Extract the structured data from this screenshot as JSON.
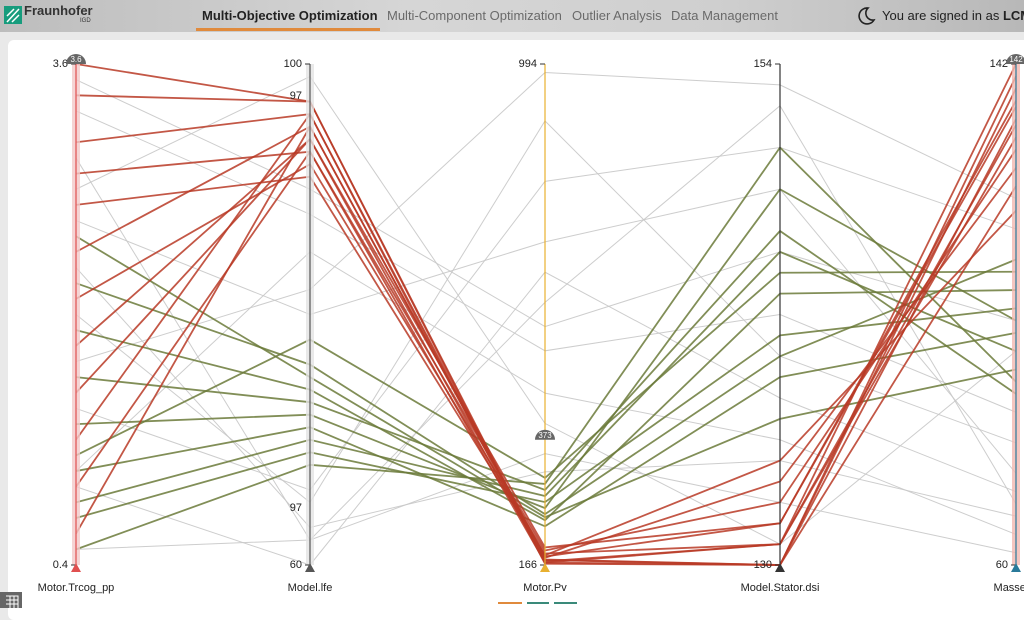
{
  "header": {
    "logo": "Fraunhofer",
    "logo_sub": "IGD",
    "tabs": [
      "Multi-Objective Optimization",
      "Multi-Component Optimization",
      "Outlier Analysis",
      "Data Management"
    ],
    "active_tab": 0,
    "user_prefix": "You are signed in as",
    "user": "LCM"
  },
  "chart_data": {
    "type": "parallel",
    "axes": [
      {
        "name": "Motor.Trcog_pp",
        "lim": [
          0.4,
          3.6
        ],
        "ticks": [
          0.4,
          3.6
        ],
        "badge": 3.6,
        "color": "#e05050"
      },
      {
        "name": "Model.lfe",
        "lim": [
          60,
          100
        ],
        "ticks": [
          60,
          100
        ],
        "brush_labels": [
          97,
          97
        ],
        "color": "#555555"
      },
      {
        "name": "Motor.Pv",
        "lim": [
          166,
          994
        ],
        "ticks": [
          166,
          994
        ],
        "badge": 373,
        "color": "#e8b030"
      },
      {
        "name": "Model.Stator.dsi",
        "lim": [
          130,
          154
        ],
        "ticks": [
          130,
          154
        ],
        "color": "#333333"
      },
      {
        "name": "Masses.c",
        "lim": [
          60,
          142
        ],
        "ticks": [
          60,
          142
        ],
        "badge": 142,
        "color": "#2a7a9a"
      }
    ],
    "groups": [
      {
        "color": "#c8c8c8",
        "records": [
          [
            3.0,
            62,
            600,
            152,
            70
          ],
          [
            2.0,
            65,
            900,
            140,
            80
          ],
          [
            1.0,
            85,
            450,
            136,
            65
          ],
          [
            2.6,
            80,
            700,
            148,
            75
          ],
          [
            0.5,
            62,
            350,
            133,
            62
          ],
          [
            3.3,
            88,
            520,
            142,
            85
          ],
          [
            1.4,
            66,
            800,
            150,
            115
          ],
          [
            2.8,
            99,
            400,
            131,
            95
          ],
          [
            0.9,
            60,
            650,
            138,
            72
          ],
          [
            1.7,
            82,
            980,
            153,
            120
          ],
          [
            2.3,
            63,
            320,
            135,
            68
          ],
          [
            3.5,
            90,
            560,
            145,
            100
          ]
        ]
      },
      {
        "color": "#6b7a3a",
        "records": [
          [
            1.3,
            72,
            260,
            148,
            100
          ],
          [
            0.8,
            70,
            280,
            145,
            95
          ],
          [
            1.9,
            74,
            240,
            143,
            105
          ],
          [
            0.5,
            68,
            300,
            150,
            90
          ],
          [
            2.2,
            76,
            250,
            140,
            110
          ],
          [
            1.0,
            71,
            230,
            139,
            98
          ],
          [
            1.6,
            73,
            290,
            146,
            88
          ],
          [
            0.7,
            69,
            270,
            141,
            102
          ],
          [
            2.5,
            75,
            245,
            137,
            92
          ],
          [
            1.1,
            78,
            310,
            144,
            108
          ]
        ]
      },
      {
        "color": "#b83a26",
        "records": [
          [
            3.6,
            97,
            170,
            131,
            142
          ],
          [
            3.1,
            96,
            175,
            130,
            138
          ],
          [
            2.4,
            95,
            180,
            132,
            135
          ],
          [
            1.8,
            94,
            172,
            131,
            130
          ],
          [
            2.9,
            93,
            190,
            133,
            128
          ],
          [
            1.2,
            96,
            168,
            130,
            140
          ],
          [
            0.6,
            95,
            178,
            134,
            125
          ],
          [
            2.1,
            92,
            185,
            131,
            132
          ],
          [
            3.4,
            97,
            174,
            130,
            122
          ],
          [
            1.5,
            94,
            195,
            132,
            136
          ],
          [
            2.7,
            91,
            182,
            135,
            118
          ],
          [
            0.9,
            93,
            170,
            130,
            133
          ]
        ]
      }
    ]
  }
}
